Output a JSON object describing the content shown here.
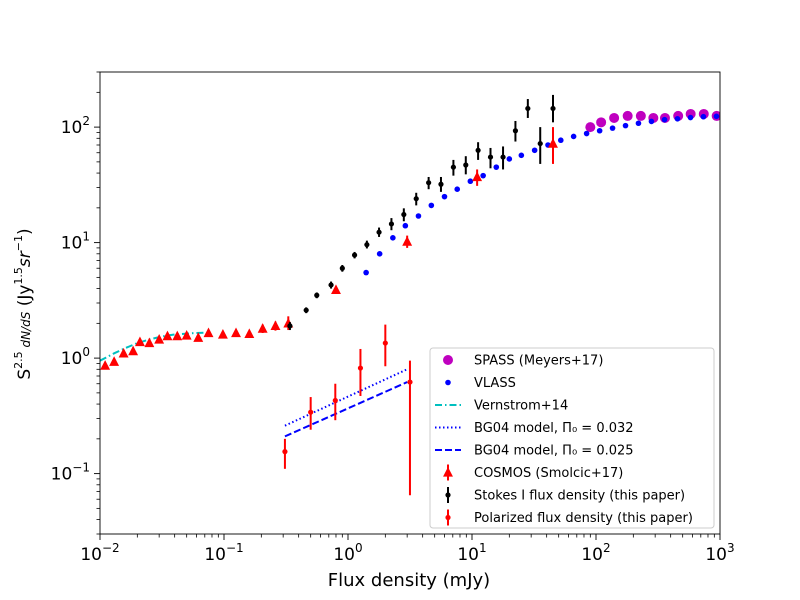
{
  "chart_data": {
    "type": "scatter",
    "xscale": "log",
    "yscale": "log",
    "xlim": [
      0.01,
      1000
    ],
    "ylim": [
      0.03,
      300
    ],
    "xlabel": "Flux density (mJy)",
    "ylabel": "S^{2.5} dN/dS (Jy^{1.5} sr^{-1})",
    "x_tick_labels": [
      {
        "value": 0.01,
        "base": "10",
        "exp": "−2"
      },
      {
        "value": 0.1,
        "base": "10",
        "exp": "−1"
      },
      {
        "value": 1,
        "base": "10",
        "exp": "0"
      },
      {
        "value": 10,
        "base": "10",
        "exp": "1"
      },
      {
        "value": 100,
        "base": "10",
        "exp": "2"
      },
      {
        "value": 1000,
        "base": "10",
        "exp": "3"
      }
    ],
    "y_tick_labels": [
      {
        "value": 0.1,
        "base": "10",
        "exp": "−1"
      },
      {
        "value": 1,
        "base": "10",
        "exp": "0"
      },
      {
        "value": 10,
        "base": "10",
        "exp": "1"
      },
      {
        "value": 100,
        "base": "10",
        "exp": "2"
      }
    ],
    "legend": {
      "position": "lower-right",
      "entries": [
        {
          "id": "spass",
          "label": "SPASS (Meyers+17)",
          "color": "#bf00bf",
          "style": "circle-large"
        },
        {
          "id": "vlass",
          "label": "VLASS",
          "color": "#0000ff",
          "style": "circle-small"
        },
        {
          "id": "vernstrom",
          "label": "Vernstrom+14",
          "color": "#00bfbf",
          "style": "dashdot"
        },
        {
          "id": "bg04_032",
          "label": "BG04 model, Π₀ = 0.032",
          "color": "#0000ff",
          "style": "dotted"
        },
        {
          "id": "bg04_025",
          "label": "BG04 model, Π₀ = 0.025",
          "color": "#0000ff",
          "style": "dashed"
        },
        {
          "id": "cosmos",
          "label": "COSMOS (Smolcic+17)",
          "color": "#ff0000",
          "style": "triangle"
        },
        {
          "id": "stokes",
          "label": "Stokes I flux density (this paper)",
          "color": "#000000",
          "style": "errorbar"
        },
        {
          "id": "polarized",
          "label": "Polarized flux density (this paper)",
          "color": "#ff0000",
          "style": "errorbar"
        }
      ]
    },
    "series": [
      {
        "name": "SPASS (Meyers+17)",
        "type": "scatter",
        "color": "#bf00bf",
        "marker": "circle-large",
        "x": [
          90,
          110,
          140,
          180,
          230,
          290,
          360,
          460,
          580,
          740,
          940
        ],
        "y": [
          100,
          110,
          120,
          125,
          125,
          120,
          120,
          125,
          130,
          130,
          125
        ]
      },
      {
        "name": "VLASS",
        "type": "scatter",
        "color": "#0000ff",
        "marker": "circle-small",
        "x": [
          1.4,
          1.8,
          2.3,
          2.9,
          3.7,
          4.7,
          6.0,
          7.6,
          9.7,
          12.3,
          15.7,
          20,
          25,
          32,
          41,
          52,
          66,
          84,
          107,
          136,
          173,
          220,
          280,
          357,
          454,
          578,
          735,
          936
        ],
        "y": [
          5.5,
          8,
          11,
          14,
          17,
          21,
          25,
          29,
          34,
          38,
          45,
          53,
          57,
          63,
          70,
          77,
          83,
          88,
          93,
          98,
          103,
          108,
          112,
          116,
          118,
          121,
          123,
          124
        ]
      },
      {
        "name": "Vernstrom+14",
        "type": "line",
        "color": "#00bfbf",
        "style": "dashdot",
        "x": [
          0.01,
          0.013,
          0.016,
          0.02,
          0.025,
          0.03,
          0.035,
          0.04,
          0.05,
          0.06,
          0.07
        ],
        "y": [
          0.95,
          1.1,
          1.22,
          1.35,
          1.45,
          1.52,
          1.57,
          1.6,
          1.63,
          1.65,
          1.66
        ]
      },
      {
        "name": "BG04 model, Π₀ = 0.032",
        "type": "line",
        "color": "#0000ff",
        "style": "dotted",
        "x": [
          0.31,
          3.0
        ],
        "y": [
          0.26,
          0.8
        ]
      },
      {
        "name": "BG04 model, Π₀ = 0.025",
        "type": "line",
        "color": "#0000ff",
        "style": "dashed",
        "x": [
          0.31,
          3.0
        ],
        "y": [
          0.21,
          0.62
        ]
      },
      {
        "name": "COSMOS (Smolcic+17)",
        "type": "errorbar",
        "color": "#ff0000",
        "marker": "triangle",
        "x": [
          0.011,
          0.013,
          0.0155,
          0.0185,
          0.021,
          0.025,
          0.03,
          0.035,
          0.042,
          0.05,
          0.062,
          0.075,
          0.098,
          0.125,
          0.16,
          0.205,
          0.26,
          0.33,
          0.8,
          3.0,
          11,
          45
        ],
        "y": [
          0.86,
          0.93,
          1.1,
          1.15,
          1.38,
          1.35,
          1.45,
          1.55,
          1.55,
          1.57,
          1.5,
          1.65,
          1.6,
          1.65,
          1.62,
          1.8,
          1.9,
          2.0,
          3.9,
          10.2,
          37,
          72
        ],
        "yerr_low": [
          0.81,
          0.87,
          1.04,
          1.08,
          1.3,
          1.27,
          1.37,
          1.47,
          1.48,
          1.5,
          1.43,
          1.57,
          1.52,
          1.56,
          1.53,
          1.65,
          1.73,
          1.75,
          3.7,
          9.0,
          31,
          48
        ],
        "yerr_high": [
          0.91,
          0.99,
          1.16,
          1.22,
          1.46,
          1.43,
          1.53,
          1.63,
          1.62,
          1.64,
          1.57,
          1.73,
          1.68,
          1.74,
          1.71,
          1.95,
          2.07,
          2.3,
          4.1,
          11.5,
          43,
          100
        ]
      },
      {
        "name": "Stokes I flux density (this paper)",
        "type": "errorbar",
        "color": "#000000",
        "marker": "dot",
        "x": [
          0.34,
          0.46,
          0.56,
          0.73,
          0.9,
          1.13,
          1.42,
          1.78,
          2.24,
          2.82,
          3.55,
          4.47,
          5.62,
          7.08,
          8.91,
          11.2,
          14.1,
          17.8,
          22.4,
          28.2,
          35.5
        ],
        "y": [
          1.9,
          2.6,
          3.5,
          4.3,
          6.0,
          7.8,
          9.6,
          12.3,
          14.5,
          17.5,
          24,
          33,
          32,
          45,
          47,
          63,
          55,
          55,
          93,
          145,
          72
        ],
        "yerr_low": [
          1.75,
          2.45,
          3.3,
          4.0,
          5.6,
          7.3,
          8.9,
          11.2,
          12.8,
          15.3,
          21,
          29,
          27.5,
          38,
          39,
          52,
          44,
          43,
          75,
          120,
          48
        ],
        "yerr_high": [
          2.05,
          2.75,
          3.7,
          4.6,
          6.4,
          8.3,
          10.4,
          13.5,
          16.3,
          19.8,
          27,
          37,
          37,
          52,
          56,
          74,
          66,
          68,
          113,
          175,
          100
        ]
      },
      {
        "name": "Stokes I flux density (this paper) high",
        "type": "errorbar",
        "color": "#000000",
        "marker": "dot",
        "x": [
          45
        ],
        "y": [
          145
        ],
        "yerr_low": [
          110
        ],
        "yerr_high": [
          190
        ]
      },
      {
        "name": "Polarized flux density (this paper)",
        "type": "errorbar",
        "color": "#ff0000",
        "marker": "dot",
        "x": [
          0.31,
          0.5,
          0.79,
          1.26,
          2.0,
          3.16
        ],
        "y": [
          0.155,
          0.34,
          0.43,
          0.82,
          1.35,
          0.62
        ],
        "yerr_low": [
          0.11,
          0.24,
          0.29,
          0.47,
          0.85,
          0.065
        ],
        "yerr_high": [
          0.2,
          0.46,
          0.6,
          1.2,
          1.95,
          0.95
        ]
      }
    ]
  }
}
